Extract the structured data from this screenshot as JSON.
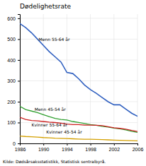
{
  "chart_data": {
    "type": "line",
    "title": "Dødelighetsrate",
    "source": "Kilde: Dødsårsaksstatistikk, Statistisk sentralbyrå.",
    "x": [
      1986,
      1987,
      1988,
      1989,
      1990,
      1991,
      1992,
      1993,
      1994,
      1995,
      1996,
      1997,
      1998,
      1999,
      2000,
      2001,
      2002,
      2003,
      2004,
      2005,
      2006
    ],
    "series": [
      {
        "color": "#3060c0",
        "values": [
          575,
          555,
          530,
          500,
          470,
          440,
          415,
          390,
          340,
          335,
          310,
          280,
          258,
          240,
          220,
          200,
          185,
          185,
          165,
          145,
          130
        ]
      },
      {
        "color": "#30a030",
        "values": [
          178,
          162,
          155,
          148,
          138,
          128,
          120,
          115,
          112,
          105,
          100,
          95,
          90,
          87,
          82,
          78,
          73,
          70,
          65,
          58,
          53
        ]
      },
      {
        "color": "#cc2020",
        "values": [
          125,
          115,
          110,
          108,
          105,
          102,
          100,
          97,
          93,
          90,
          90,
          88,
          88,
          87,
          85,
          80,
          75,
          72,
          68,
          62,
          57
        ]
      },
      {
        "color": "#d4a000",
        "values": [
          35,
          33,
          32,
          30,
          28,
          27,
          25,
          24,
          23,
          22,
          21,
          20,
          20,
          19,
          18,
          17,
          16,
          15,
          14,
          13,
          12
        ]
      }
    ],
    "annotations": [
      {
        "text": "Menn 55-64 år",
        "x": 1989.2,
        "y": 490
      },
      {
        "text": "Menn 45-54 år",
        "x": 1988.5,
        "y": 157
      },
      {
        "text": "Kvinner 55-64 år",
        "x": 1988.0,
        "y": 80
      },
      {
        "text": "Kvinner 45-54 år",
        "x": 1990.5,
        "y": 48
      }
    ],
    "xlim": [
      1986,
      2006
    ],
    "xticks": [
      1986,
      1990,
      1994,
      1998,
      2002,
      2006
    ],
    "ylim": [
      0,
      620
    ],
    "yticks": [
      0,
      100,
      200,
      300,
      400,
      500,
      600
    ],
    "grid": true
  }
}
